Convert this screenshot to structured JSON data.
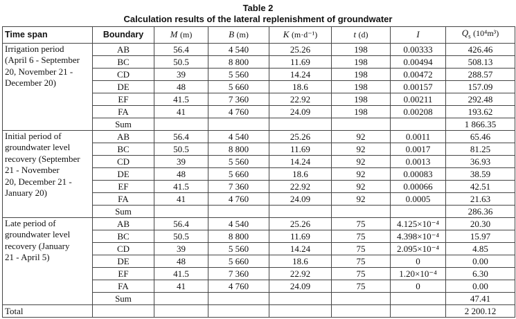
{
  "title": {
    "number": "Table 2",
    "caption": "Calculation results of the lateral replenishment of groundwater"
  },
  "table": {
    "header": [
      {
        "text": "Time span"
      },
      {
        "text": "Boundary"
      },
      {
        "var": "M",
        "unit": "(m)"
      },
      {
        "var": "B",
        "unit": "(m)"
      },
      {
        "var": "K",
        "unit": "(m·d⁻¹)"
      },
      {
        "var": "t",
        "unit": "(d)"
      },
      {
        "var": "I"
      },
      {
        "var": "Q",
        "sub": "s",
        "unit": "(10⁴m³)"
      }
    ],
    "groups": [
      {
        "time_span": [
          "Irrigation period",
          "(April 6 - September",
          "20, November 21 -",
          "December 20)"
        ],
        "rows": [
          [
            "AB",
            "56.4",
            "4 540",
            "25.26",
            "198",
            "0.00333",
            "426.46"
          ],
          [
            "BC",
            "50.5",
            "8 800",
            "11.69",
            "198",
            "0.00494",
            "508.13"
          ],
          [
            "CD",
            "39",
            "5 560",
            "14.24",
            "198",
            "0.00472",
            "288.57"
          ],
          [
            "DE",
            "48",
            "5 660",
            "18.6",
            "198",
            "0.00157",
            "157.09"
          ],
          [
            "EF",
            "41.5",
            "7 360",
            "22.92",
            "198",
            "0.00211",
            "292.48"
          ],
          [
            "FA",
            "41",
            "4 760",
            "24.09",
            "198",
            "0.00208",
            "193.62"
          ]
        ],
        "sum": {
          "label": "Sum",
          "value": "1 866.35"
        }
      },
      {
        "time_span": [
          "Initial period of",
          "groundwater level",
          "recovery (September",
          "21 - November",
          "20, December 21 -",
          "January 20)"
        ],
        "rows": [
          [
            "AB",
            "56.4",
            "4 540",
            "25.26",
            "92",
            "0.0011",
            "65.46"
          ],
          [
            "BC",
            "50.5",
            "8 800",
            "11.69",
            "92",
            "0.0017",
            "81.25"
          ],
          [
            "CD",
            "39",
            "5 560",
            "14.24",
            "92",
            "0.0013",
            "36.93"
          ],
          [
            "DE",
            "48",
            "5 660",
            "18.6",
            "92",
            "0.00083",
            "38.59"
          ],
          [
            "EF",
            "41.5",
            "7 360",
            "22.92",
            "92",
            "0.00066",
            "42.51"
          ],
          [
            "FA",
            "41",
            "4 760",
            "24.09",
            "92",
            "0.0005",
            "21.63"
          ]
        ],
        "sum": {
          "label": "Sum",
          "value": "286.36"
        }
      },
      {
        "time_span": [
          "Late period of",
          "groundwater level",
          "recovery (January",
          "21 - April 5)"
        ],
        "rows": [
          [
            "AB",
            "56.4",
            "4 540",
            "25.26",
            "75",
            "4.125×10⁻⁴",
            "20.30"
          ],
          [
            "BC",
            "50.5",
            "8 800",
            "11.69",
            "75",
            "4.398×10⁻⁴",
            "15.97"
          ],
          [
            "CD",
            "39",
            "5 560",
            "14.24",
            "75",
            "2.095×10⁻⁴",
            "4.85"
          ],
          [
            "DE",
            "48",
            "5 660",
            "18.6",
            "75",
            "0",
            "0.00"
          ],
          [
            "EF",
            "41.5",
            "7 360",
            "22.92",
            "75",
            "1.20×10⁻⁴",
            "6.30"
          ],
          [
            "FA",
            "41",
            "4 760",
            "24.09",
            "75",
            "0",
            "0.00"
          ]
        ],
        "sum": {
          "label": "Sum",
          "value": "47.41"
        }
      }
    ],
    "total": {
      "label": "Total",
      "value": "2 200.12"
    }
  }
}
